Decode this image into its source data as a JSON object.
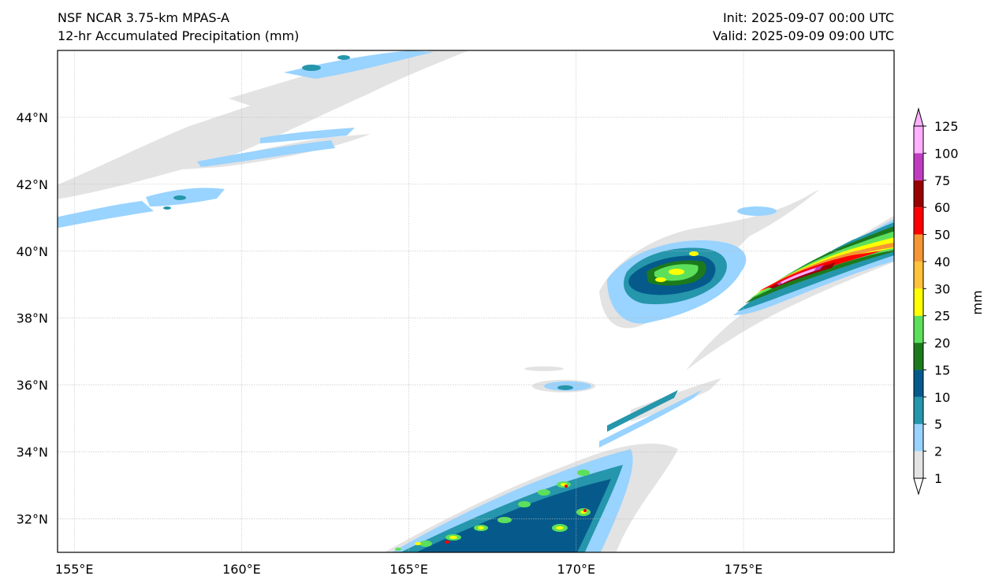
{
  "titles": {
    "left_line1": "NSF NCAR 3.75-km MPAS-A",
    "left_line2": "12-hr Accumulated Precipitation (mm)",
    "right_line1": "Init: 2025-09-07 00:00 UTC",
    "right_line2": "Valid: 2025-09-09 09:00 UTC"
  },
  "map": {
    "lon_range": [
      154.5,
      179.5
    ],
    "lat_range": [
      31,
      46
    ],
    "lon_ticks": [
      {
        "value": 155,
        "label": "155°E"
      },
      {
        "value": 160,
        "label": "160°E"
      },
      {
        "value": 165,
        "label": "165°E"
      },
      {
        "value": 170,
        "label": "170°E"
      },
      {
        "value": 175,
        "label": "175°E"
      }
    ],
    "lat_ticks": [
      {
        "value": 32,
        "label": "32°N"
      },
      {
        "value": 34,
        "label": "34°N"
      },
      {
        "value": 36,
        "label": "36°N"
      },
      {
        "value": 38,
        "label": "38°N"
      },
      {
        "value": 40,
        "label": "40°N"
      },
      {
        "value": 42,
        "label": "42°N"
      },
      {
        "value": 44,
        "label": "44°N"
      }
    ],
    "gridlines": true
  },
  "colorbar": {
    "label": "mm",
    "levels": [
      {
        "value": 1,
        "label": "1",
        "color": "#e3e3e3"
      },
      {
        "value": 2,
        "label": "2",
        "color": "#99d3ff"
      },
      {
        "value": 5,
        "label": "5",
        "color": "#2596ab"
      },
      {
        "value": 10,
        "label": "10",
        "color": "#055a8b"
      },
      {
        "value": 15,
        "label": "15",
        "color": "#1c7a1c"
      },
      {
        "value": 20,
        "label": "20",
        "color": "#5ce05c"
      },
      {
        "value": 25,
        "label": "25",
        "color": "#ffff00"
      },
      {
        "value": 30,
        "label": "30",
        "color": "#ffc23a"
      },
      {
        "value": 40,
        "label": "40",
        "color": "#f59634"
      },
      {
        "value": 50,
        "label": "50",
        "color": "#ff0000"
      },
      {
        "value": 60,
        "label": "60",
        "color": "#990000"
      },
      {
        "value": 75,
        "label": "75",
        "color": "#c03bc0"
      },
      {
        "value": 100,
        "label": "100",
        "color": "#ffb0ff"
      },
      {
        "value": 125,
        "label": "125",
        "color": ""
      }
    ]
  }
}
